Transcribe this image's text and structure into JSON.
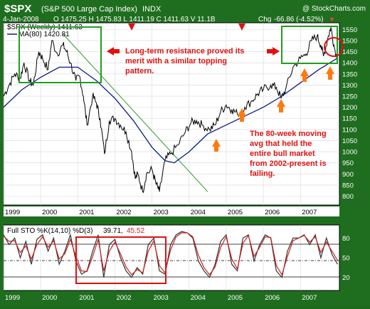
{
  "header": {
    "ticker": "$SPX",
    "name": "(S&P 500 Large Cap Index)",
    "exchange": "INDX",
    "credit": "@ StockCharts.com",
    "date": "4-Jan-2008",
    "ohlc": "O 1475.25  H 1475.83  L 1411.19  C 1411.63  V 11.1B",
    "chg_label": "Chg",
    "chg_value": "-66.86 (-4.52%)",
    "chg_arrow": "▼"
  },
  "legend": {
    "series": "$SPX (Weekly) 1411.63",
    "ma": "MA(80) 1420.81"
  },
  "annotations": {
    "resistance": [
      "Long-term resistance proved its",
      "merit with a similar topping",
      "pattern."
    ],
    "ma_note": [
      "The 80-week moving",
      "avg that held the",
      "entire bull market",
      "from 2002-present is",
      "failing."
    ]
  },
  "stoch": {
    "label": "Full STO %K(14,10) %D(3)",
    "k_value": "39.71,",
    "d_value": "45.52"
  },
  "colors": {
    "background": "#1f6e1f",
    "price": "#000000",
    "ma": "#0b1b8a",
    "trendline": "#2e9a2e",
    "annotation": "#e01010",
    "arrow": "#ff7a10",
    "box_green": "#1f9e1f",
    "box_red": "#e01010",
    "k_line": "#333333",
    "d_line": "#cc2222"
  },
  "chart_data": [
    {
      "type": "line",
      "x_ticks": [
        "1999",
        "2000",
        "2001",
        "2002",
        "2003",
        "2004",
        "2005",
        "2006",
        "2007"
      ],
      "y_ticks": [
        800,
        850,
        900,
        950,
        1000,
        1050,
        1100,
        1150,
        1200,
        1250,
        1300,
        1350,
        1400,
        1450,
        1500,
        1550
      ],
      "ylim": [
        760,
        1580
      ],
      "xlim": [
        1999.0,
        2008.05
      ],
      "series": [
        {
          "name": "$SPX (Weekly) 1411.63",
          "x": [
            1999.0,
            1999.15,
            1999.3,
            1999.45,
            1999.55,
            1999.7,
            1999.8,
            1999.95,
            2000.05,
            2000.2,
            2000.3,
            2000.45,
            2000.6,
            2000.7,
            2000.8,
            2000.95,
            2001.05,
            2001.15,
            2001.25,
            2001.4,
            2001.5,
            2001.6,
            2001.72,
            2001.85,
            2002.0,
            2002.15,
            2002.3,
            2002.45,
            2002.55,
            2002.62,
            2002.75,
            2002.85,
            2003.0,
            2003.1,
            2003.2,
            2003.35,
            2003.5,
            2003.7,
            2003.9,
            2004.05,
            2004.2,
            2004.35,
            2004.55,
            2004.7,
            2004.85,
            2005.0,
            2005.15,
            2005.3,
            2005.5,
            2005.7,
            2005.85,
            2006.0,
            2006.2,
            2006.35,
            2006.48,
            2006.6,
            2006.8,
            2007.0,
            2007.15,
            2007.3,
            2007.45,
            2007.55,
            2007.62,
            2007.75,
            2007.82,
            2007.9,
            2008.0
          ],
          "y": [
            1250,
            1300,
            1350,
            1330,
            1400,
            1320,
            1300,
            1450,
            1420,
            1370,
            1500,
            1440,
            1480,
            1450,
            1400,
            1320,
            1340,
            1250,
            1120,
            1250,
            1220,
            1150,
            990,
            1140,
            1150,
            1120,
            1090,
            1000,
            880,
            900,
            820,
            900,
            920,
            860,
            820,
            960,
            990,
            1030,
            1090,
            1130,
            1140,
            1120,
            1100,
            1120,
            1180,
            1210,
            1190,
            1170,
            1200,
            1230,
            1260,
            1280,
            1300,
            1290,
            1240,
            1280,
            1380,
            1420,
            1440,
            1500,
            1520,
            1480,
            1430,
            1520,
            1560,
            1480,
            1412
          ]
        },
        {
          "name": "MA(80) 1420.81",
          "x": [
            1999.0,
            1999.5,
            2000.0,
            2000.5,
            2001.0,
            2001.5,
            2002.0,
            2002.5,
            2003.0,
            2003.35,
            2003.6,
            2004.0,
            2004.5,
            2005.0,
            2005.5,
            2006.0,
            2006.5,
            2007.0,
            2007.5,
            2008.0
          ],
          "y": [
            1200,
            1280,
            1335,
            1380,
            1380,
            1320,
            1240,
            1140,
            1020,
            960,
            950,
            1000,
            1080,
            1120,
            1160,
            1200,
            1250,
            1310,
            1370,
            1421
          ]
        },
        {
          "name": "trendline",
          "x": [
            2000.6,
            2004.5
          ],
          "y": [
            1530,
            820
          ]
        }
      ]
    },
    {
      "type": "line",
      "x_ticks": [
        "1999",
        "2000",
        "2001",
        "2002",
        "2003",
        "2004",
        "2005",
        "2006",
        "2007"
      ],
      "y_ticks": [
        20,
        50,
        80
      ],
      "ylim": [
        0,
        100
      ],
      "xlim": [
        1999.0,
        2008.05
      ],
      "series": [
        {
          "name": "%K",
          "x": [
            1999.0,
            1999.15,
            1999.3,
            1999.45,
            1999.6,
            1999.75,
            1999.9,
            2000.05,
            2000.2,
            2000.35,
            2000.5,
            2000.65,
            2000.8,
            2000.95,
            2001.1,
            2001.25,
            2001.4,
            2001.55,
            2001.7,
            2001.85,
            2002.0,
            2002.15,
            2002.3,
            2002.45,
            2002.6,
            2002.75,
            2002.9,
            2003.05,
            2003.2,
            2003.35,
            2003.5,
            2003.65,
            2003.8,
            2003.95,
            2004.1,
            2004.25,
            2004.4,
            2004.55,
            2004.7,
            2004.85,
            2005.0,
            2005.15,
            2005.3,
            2005.45,
            2005.6,
            2005.75,
            2005.9,
            2006.05,
            2006.2,
            2006.35,
            2006.5,
            2006.65,
            2006.8,
            2006.95,
            2007.1,
            2007.25,
            2007.4,
            2007.55,
            2007.7,
            2007.85,
            2008.0
          ],
          "y": [
            85,
            70,
            80,
            50,
            75,
            40,
            78,
            85,
            60,
            80,
            40,
            60,
            85,
            45,
            25,
            30,
            60,
            85,
            20,
            70,
            78,
            50,
            30,
            20,
            35,
            25,
            70,
            80,
            30,
            25,
            70,
            85,
            90,
            88,
            80,
            45,
            30,
            20,
            40,
            75,
            85,
            40,
            30,
            80,
            85,
            45,
            70,
            85,
            80,
            30,
            20,
            60,
            80,
            80,
            85,
            70,
            85,
            50,
            80,
            55,
            40
          ]
        },
        {
          "name": "%D",
          "x": [
            1999.0,
            1999.15,
            1999.3,
            1999.45,
            1999.6,
            1999.75,
            1999.9,
            2000.05,
            2000.2,
            2000.35,
            2000.5,
            2000.65,
            2000.8,
            2000.95,
            2001.1,
            2001.25,
            2001.4,
            2001.55,
            2001.7,
            2001.85,
            2002.0,
            2002.15,
            2002.3,
            2002.45,
            2002.6,
            2002.75,
            2002.9,
            2003.05,
            2003.2,
            2003.35,
            2003.5,
            2003.65,
            2003.8,
            2003.95,
            2004.1,
            2004.25,
            2004.4,
            2004.55,
            2004.7,
            2004.85,
            2005.0,
            2005.15,
            2005.3,
            2005.45,
            2005.6,
            2005.75,
            2005.9,
            2006.05,
            2006.2,
            2006.35,
            2006.5,
            2006.65,
            2006.8,
            2006.95,
            2007.1,
            2007.25,
            2007.4,
            2007.55,
            2007.7,
            2007.85,
            2008.0
          ],
          "y": [
            83,
            75,
            76,
            58,
            68,
            48,
            70,
            82,
            66,
            76,
            48,
            56,
            78,
            52,
            30,
            29,
            52,
            78,
            30,
            60,
            74,
            56,
            36,
            24,
            32,
            27,
            60,
            76,
            38,
            27,
            62,
            82,
            88,
            88,
            82,
            54,
            35,
            24,
            36,
            66,
            82,
            48,
            33,
            72,
            84,
            52,
            66,
            82,
            81,
            38,
            24,
            52,
            76,
            80,
            84,
            74,
            82,
            58,
            74,
            60,
            46
          ]
        }
      ]
    }
  ]
}
